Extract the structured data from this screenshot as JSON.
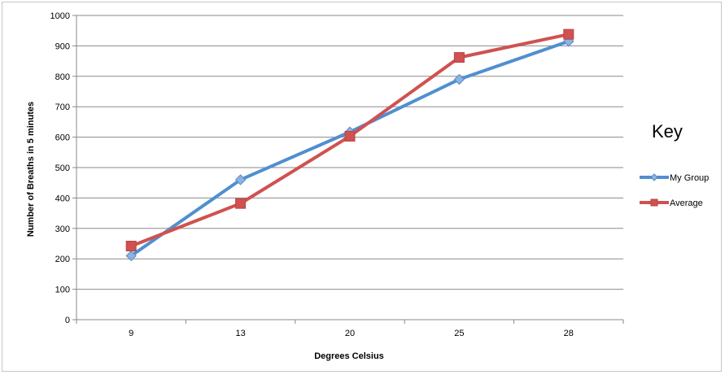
{
  "chart_data": {
    "type": "line",
    "title": "",
    "xlabel": "Degrees Celsius",
    "ylabel": "Number of Breaths in 5 minutes",
    "categories": [
      "9",
      "13",
      "20",
      "25",
      "28"
    ],
    "ylim": [
      0,
      1000
    ],
    "yticks": [
      0,
      100,
      200,
      300,
      400,
      500,
      600,
      700,
      800,
      900,
      1000
    ],
    "grid": true,
    "legend_title": "Key",
    "legend_position": "right",
    "series": [
      {
        "name": "My Group",
        "values": [
          210,
          460,
          617,
          790,
          915
        ],
        "color": "#4f8fcf",
        "marker": "diamond",
        "marker_color": "#8db3e2"
      },
      {
        "name": "Average",
        "values": [
          242,
          382,
          603,
          862,
          938
        ],
        "color": "#cf5250",
        "marker": "square",
        "marker_color": "#cf5250"
      }
    ]
  }
}
